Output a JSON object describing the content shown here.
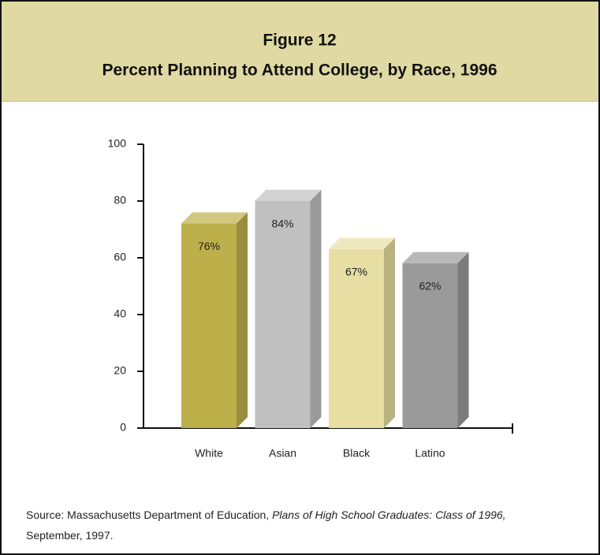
{
  "chart_data": {
    "type": "bar3d",
    "title": "Figure 12",
    "subtitle": "Percent Planning to Attend College, by Race, 1996",
    "categories": [
      "White",
      "Asian",
      "Black",
      "Latino"
    ],
    "values": [
      76,
      84,
      67,
      62
    ],
    "value_labels": [
      "76%",
      "84%",
      "67%",
      "62%"
    ],
    "colors": [
      "#bdb04a",
      "#c0c0c0",
      "#e6dea2",
      "#9a9a9a"
    ],
    "ylim": [
      0,
      100
    ],
    "yticks": [
      0,
      20,
      40,
      60,
      80,
      100
    ],
    "grid": false
  },
  "source": {
    "label": "Source:",
    "text": "Massachusetts Department of Education,",
    "publication": "Plans of High School Graduates: Class of 1996,",
    "date": "September, 1997."
  }
}
